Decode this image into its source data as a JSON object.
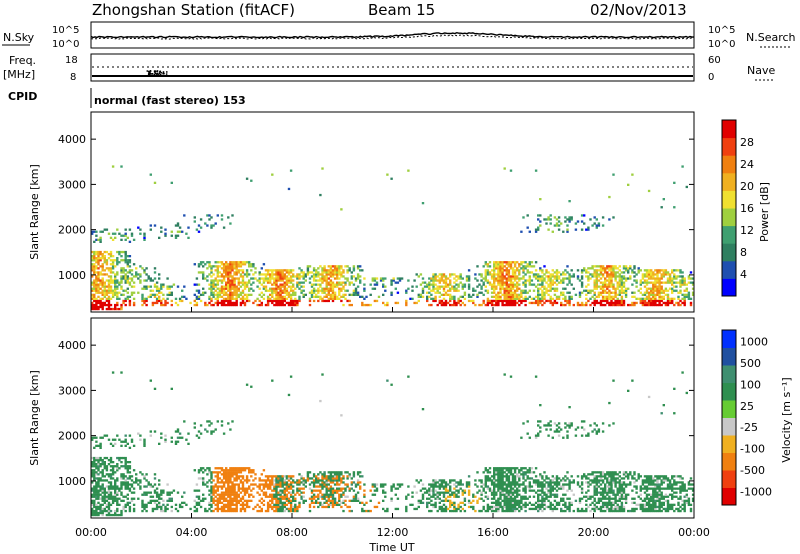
{
  "header": {
    "station": "Zhongshan Station (fitACF)",
    "beam": "Beam 15",
    "date": "02/Nov/2013"
  },
  "noise_panel": {
    "left_label": "N.Sky",
    "right_label": "N.Search",
    "left_ticks": [
      "10^5",
      "10^0"
    ],
    "right_ticks": [
      "10^5",
      "10^0"
    ]
  },
  "freq_panel": {
    "left_label_1": "Freq.",
    "left_label_2": "[MHz]",
    "left_ticks": [
      "18",
      "8"
    ],
    "right_label": "Nave",
    "right_ticks": [
      "60",
      "0"
    ]
  },
  "cpid": {
    "label": "CPID",
    "value": "normal (fast stereo) 153"
  },
  "colors": {
    "power_scale": [
      "#0000ff",
      "#1f4fb0",
      "#2f7f60",
      "#3f9f70",
      "#9fcf3f",
      "#f0e030",
      "#f0b020",
      "#f08010",
      "#f04010",
      "#e00000"
    ],
    "velocity_scale": [
      "#e00000",
      "#f04010",
      "#f08010",
      "#f0b020",
      "#c8c8c8",
      "#66cc33",
      "#2f8f50",
      "#3f8f70",
      "#2050a0",
      "#0030ff"
    ]
  },
  "chart_data": [
    {
      "type": "heatmap",
      "name": "power",
      "ylabel": "Slant Range [km]",
      "yticks": [
        "1000",
        "2000",
        "3000",
        "4000"
      ],
      "ylim": [
        180,
        4600
      ],
      "colorbar_label": "Power [dB]",
      "colorbar_ticks": [
        "4",
        "8",
        "12",
        "16",
        "20",
        "24",
        "28"
      ],
      "colorbar_range": [
        0,
        32
      ]
    },
    {
      "type": "heatmap",
      "name": "velocity",
      "ylabel": "Slant Range [km]",
      "yticks": [
        "1000",
        "2000",
        "3000",
        "4000"
      ],
      "ylim": [
        180,
        4600
      ],
      "colorbar_label": "Velocity [m s⁻¹]",
      "colorbar_ticks": [
        "1000",
        "500",
        "100",
        "25",
        "-25",
        "-100",
        "-500",
        "-1000"
      ],
      "xlabel": "Time UT",
      "xticks": [
        "00:00",
        "04:00",
        "08:00",
        "12:00",
        "16:00",
        "20:00",
        "00:00"
      ],
      "xlim_hours": [
        0,
        24
      ]
    }
  ]
}
